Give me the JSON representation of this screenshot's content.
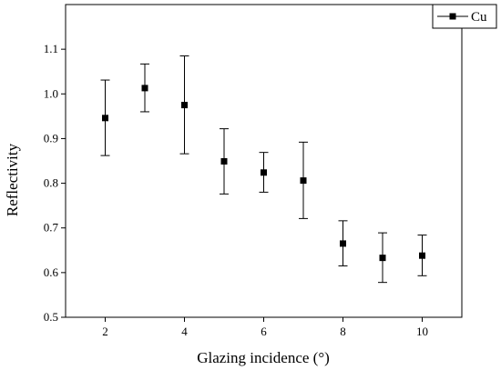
{
  "chart_data": {
    "type": "scatter",
    "xlabel": "Glazing incidence (°)",
    "ylabel": "Reflectivity",
    "xlim": [
      1,
      11
    ],
    "ylim": [
      0.5,
      1.2
    ],
    "x_ticks": [
      2,
      4,
      6,
      8,
      10
    ],
    "y_ticks": [
      0.5,
      0.6,
      0.7,
      0.8,
      0.9,
      1.0,
      1.1
    ],
    "y_tick_labels": [
      "0.5",
      "0.6",
      "0.7",
      "0.8",
      "0.9",
      "1.0",
      "1.1"
    ],
    "grid": false,
    "legend_position": "top-right",
    "series": [
      {
        "name": "Cu",
        "color": "#000000",
        "marker": "square",
        "x": [
          2,
          3,
          4,
          5,
          6,
          7,
          8,
          9,
          10
        ],
        "y": [
          0.946,
          1.013,
          0.975,
          0.849,
          0.824,
          0.806,
          0.665,
          0.633,
          0.638
        ],
        "y_err_upper": [
          1.031,
          1.067,
          1.085,
          0.922,
          0.869,
          0.892,
          0.716,
          0.689,
          0.684
        ],
        "y_err_lower": [
          0.862,
          0.96,
          0.866,
          0.776,
          0.78,
          0.721,
          0.615,
          0.578,
          0.593
        ]
      }
    ]
  }
}
